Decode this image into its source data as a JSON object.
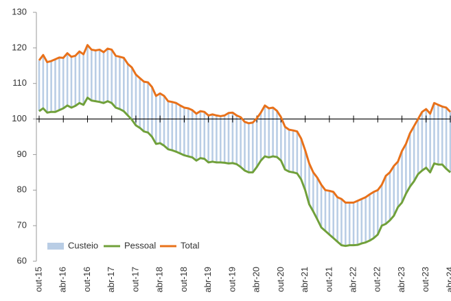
{
  "chart_data": {
    "type": "line",
    "categories": [
      "out-15",
      null,
      null,
      null,
      null,
      null,
      "abr-16",
      null,
      null,
      null,
      null,
      null,
      "out-16",
      null,
      null,
      null,
      null,
      null,
      "abr-17",
      null,
      null,
      null,
      null,
      null,
      "out-17",
      null,
      null,
      null,
      null,
      null,
      "abr-18",
      null,
      null,
      null,
      null,
      null,
      "out-18",
      null,
      null,
      null,
      null,
      null,
      "abr-19",
      null,
      null,
      null,
      null,
      null,
      "out-19",
      null,
      null,
      null,
      null,
      null,
      "abr-20",
      null,
      null,
      null,
      null,
      null,
      "out-20",
      null,
      null,
      null,
      null,
      null,
      "abr-21",
      null,
      null,
      null,
      null,
      null,
      "out-21",
      null,
      null,
      null,
      null,
      null,
      "abr-22",
      null,
      null,
      null,
      null,
      null,
      "out-22",
      null,
      null,
      null,
      null,
      null,
      "abr-23",
      null,
      null,
      null,
      null,
      null,
      "out-23",
      null,
      null,
      null,
      null,
      null,
      "abr-24"
    ],
    "range_series": {
      "name": "Custeio",
      "color": "#b9cde5"
    },
    "series": [
      {
        "name": "Pessoal",
        "color": "#70a03a",
        "values": [
          102.2,
          103,
          101.8,
          102,
          102,
          102.5,
          103,
          103.8,
          103.2,
          103.7,
          104.5,
          104,
          106,
          105.2,
          105,
          104.8,
          104.5,
          105,
          104.5,
          103.2,
          102.8,
          102.2,
          101,
          99.8,
          98.2,
          97.5,
          96.5,
          96.2,
          95,
          93,
          93.2,
          92.5,
          91.5,
          91.2,
          90.8,
          90.3,
          89.8,
          89.5,
          89.2,
          88.3,
          89,
          88.8,
          87.8,
          88,
          87.8,
          87.8,
          87.7,
          87.5,
          87.6,
          87.3,
          86.5,
          85.5,
          85,
          85,
          86.5,
          88.3,
          89.5,
          89.2,
          89.5,
          89.3,
          88.3,
          85.8,
          85.2,
          85,
          84.7,
          83,
          80,
          76,
          74,
          71.8,
          69.5,
          68.5,
          67.5,
          66.5,
          65.5,
          64.5,
          64.3,
          64.5,
          64.5,
          64.6,
          65,
          65.3,
          65.8,
          66.5,
          67.5,
          70,
          70.5,
          71.5,
          72.8,
          75.2,
          76.5,
          79,
          81,
          82.5,
          84.5,
          85.5,
          86.3,
          85,
          87.5,
          87.2,
          87.2,
          86,
          85
        ]
      },
      {
        "name": "Total",
        "color": "#e8711a",
        "values": [
          116.5,
          118,
          116,
          116.3,
          116.8,
          117.3,
          117.2,
          118.5,
          117.5,
          117.8,
          119,
          118.2,
          120.8,
          119.5,
          119.3,
          119.5,
          118.8,
          119.8,
          119.5,
          117.8,
          117.5,
          117.2,
          115.5,
          114.5,
          112.5,
          111.5,
          110.5,
          110.3,
          109,
          106.5,
          107.2,
          106.5,
          105,
          104.8,
          104.5,
          103.8,
          103.2,
          103,
          102.5,
          101.5,
          102.2,
          102,
          101,
          101.3,
          101,
          100.8,
          101,
          101.7,
          101.8,
          101,
          100.5,
          99.2,
          98.8,
          99,
          100.2,
          101.8,
          103.8,
          103,
          103.2,
          102.3,
          100.5,
          97.8,
          97,
          96.8,
          96.5,
          94.5,
          91.2,
          87.5,
          85,
          83.5,
          81.5,
          80,
          79.8,
          79.5,
          78,
          77.5,
          76.5,
          76.5,
          76.5,
          77,
          77.5,
          78,
          78.8,
          79.5,
          80,
          81.5,
          84,
          85,
          86.8,
          88,
          91,
          93,
          96,
          98,
          100,
          102,
          102.8,
          101.5,
          104.5,
          104,
          103.5,
          103.2,
          102
        ]
      }
    ],
    "ylim": [
      60,
      130
    ],
    "yticks": [
      60,
      70,
      80,
      90,
      100,
      110,
      120,
      130
    ],
    "xaxis_at": 100,
    "legend": "lower left"
  }
}
